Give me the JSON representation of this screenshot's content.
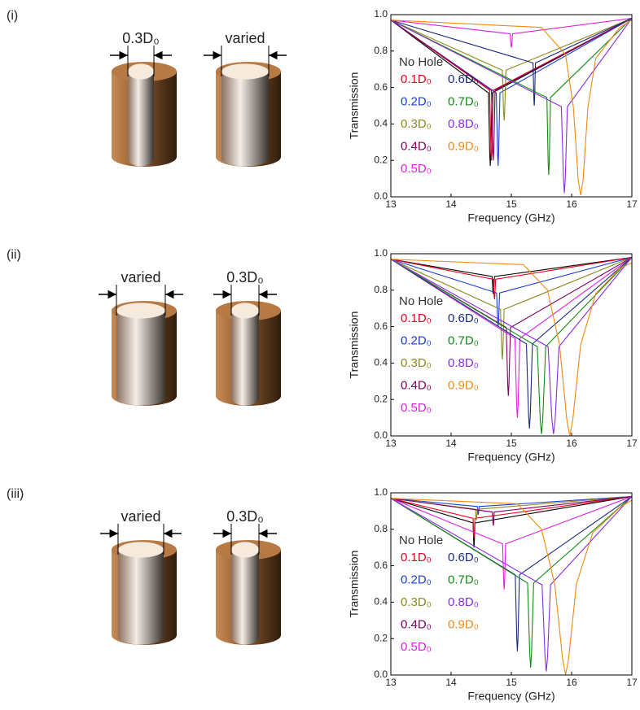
{
  "chart_data": [
    {
      "type": "line",
      "panel": "(i)",
      "left_label": "0.3D₀",
      "right_label": "varied",
      "xlabel": "Frequency (GHz)",
      "ylabel": "Transmission",
      "xlim": [
        13,
        17
      ],
      "ylim": [
        0,
        1
      ],
      "xticks": [
        13,
        14,
        15,
        16,
        17
      ],
      "yticks": [
        {
          "value": 0,
          "label": "0.0"
        },
        {
          "value": 0.2,
          "label": "0.2"
        },
        {
          "value": 0.4,
          "label": "0.4"
        },
        {
          "value": 0.6,
          "label": "0.6"
        },
        {
          "value": 0.8,
          "label": "0.8"
        },
        {
          "value": 1,
          "label": "1.0"
        }
      ],
      "series": [
        {
          "name": "No Hole",
          "color": "#000000",
          "x": [
            13,
            14.62,
            14.641,
            14.65,
            14.659,
            14.68,
            17
          ],
          "values": [
            0.97,
            0.57,
            0.24,
            0.17,
            0.24,
            0.57,
            0.98
          ]
        },
        {
          "name": "0.1D₀",
          "color": "#e8001c",
          "x": [
            13,
            14.64,
            14.661,
            14.67,
            14.679,
            14.7,
            17
          ],
          "values": [
            0.97,
            0.585,
            0.26,
            0.2,
            0.26,
            0.585,
            0.98
          ]
        },
        {
          "name": "0.2D₀",
          "color": "#1a3fd6",
          "x": [
            13,
            14.75,
            14.771,
            14.78,
            14.789,
            14.81,
            17
          ],
          "values": [
            0.97,
            0.57,
            0.24,
            0.17,
            0.24,
            0.57,
            0.98
          ]
        },
        {
          "name": "0.3D₀",
          "color": "#8a8a1e",
          "x": [
            13,
            14.85,
            14.871,
            14.88,
            14.889,
            14.91,
            17
          ],
          "values": [
            0.97,
            0.695,
            0.466,
            0.42,
            0.466,
            0.695,
            0.98
          ]
        },
        {
          "name": "0.4D₀",
          "color": "#800060",
          "x": [
            13,
            14.67,
            14.691,
            14.7,
            14.709,
            14.73,
            17
          ],
          "values": [
            0.97,
            0.585,
            0.26,
            0.2,
            0.26,
            0.585,
            0.98
          ]
        },
        {
          "name": "0.5D₀",
          "color": "#e020e0",
          "x": [
            13,
            14.98,
            14.994,
            15,
            15.006,
            15.02,
            17
          ],
          "values": [
            0.97,
            0.895,
            0.83,
            0.82,
            0.83,
            0.895,
            0.98
          ]
        },
        {
          "name": "0.6D₀",
          "color": "#1a2a80",
          "x": [
            13,
            15.36,
            15.374,
            15.38,
            15.386,
            15.4,
            17
          ],
          "values": [
            0.97,
            0.735,
            0.54,
            0.5,
            0.54,
            0.735,
            0.98
          ]
        },
        {
          "name": "0.7D₀",
          "color": "#138a13",
          "x": [
            13,
            15.59,
            15.611,
            15.62,
            15.629,
            15.65,
            17
          ],
          "values": [
            0.97,
            0.545,
            0.19,
            0.12,
            0.19,
            0.545,
            0.98
          ]
        },
        {
          "name": "0.8D₀",
          "color": "#8a2be2",
          "x": [
            13,
            15.83,
            15.865,
            15.88,
            15.895,
            15.93,
            17
          ],
          "values": [
            0.97,
            0.495,
            0.1,
            0.02,
            0.1,
            0.495,
            0.98
          ]
        },
        {
          "name": "0.9D₀",
          "color": "#f08a10",
          "x": [
            13,
            15.5,
            15.9,
            16.03,
            16.11,
            16.15,
            16.19,
            16.27,
            16.4,
            16.8,
            17
          ],
          "values": [
            0.97,
            0.93,
            0.78,
            0.49,
            0.09,
            0.01,
            0.09,
            0.49,
            0.76,
            0.93,
            0.97
          ]
        }
      ]
    },
    {
      "type": "line",
      "panel": "(ii)",
      "left_label": "varied",
      "right_label": "0.3D₀",
      "xlabel": "Frequency (GHz)",
      "ylabel": "Transmission",
      "xlim": [
        13,
        17
      ],
      "ylim": [
        0,
        1
      ],
      "xticks": [
        13,
        14,
        15,
        16,
        17
      ],
      "yticks": [
        {
          "value": 0,
          "label": "0.0"
        },
        {
          "value": 0.2,
          "label": "0.2"
        },
        {
          "value": 0.4,
          "label": "0.4"
        },
        {
          "value": 0.6,
          "label": "0.6"
        },
        {
          "value": 0.8,
          "label": "0.8"
        },
        {
          "value": 1,
          "label": "1.0"
        }
      ],
      "series": [
        {
          "name": "No Hole",
          "color": "#000000",
          "x": [
            13,
            14.68,
            14.694,
            14.7,
            14.706,
            14.72,
            17
          ],
          "values": [
            0.97,
            0.875,
            0.79,
            0.78,
            0.79,
            0.875,
            0.98
          ]
        },
        {
          "name": "0.1D₀",
          "color": "#e8001c",
          "x": [
            13,
            14.7,
            14.714,
            14.72,
            14.726,
            14.74,
            17
          ],
          "values": [
            0.97,
            0.86,
            0.77,
            0.75,
            0.77,
            0.86,
            0.98
          ]
        },
        {
          "name": "0.2D₀",
          "color": "#1a3fd6",
          "x": [
            13,
            14.755,
            14.773,
            14.78,
            14.788,
            14.805,
            17
          ],
          "values": [
            0.97,
            0.785,
            0.63,
            0.6,
            0.63,
            0.785,
            0.98
          ]
        },
        {
          "name": "0.3D₀",
          "color": "#8a8a1e",
          "x": [
            13,
            14.82,
            14.841,
            14.85,
            14.859,
            14.88,
            17
          ],
          "values": [
            0.97,
            0.695,
            0.466,
            0.42,
            0.466,
            0.695,
            0.98
          ]
        },
        {
          "name": "0.4D₀",
          "color": "#800060",
          "x": [
            13,
            14.915,
            14.94,
            14.95,
            14.96,
            14.985,
            17
          ],
          "values": [
            0.97,
            0.595,
            0.28,
            0.22,
            0.28,
            0.595,
            0.98
          ]
        },
        {
          "name": "0.5D₀",
          "color": "#e020e0",
          "x": [
            13,
            15.06,
            15.088,
            15.1,
            15.112,
            15.14,
            17
          ],
          "values": [
            0.97,
            0.535,
            0.17,
            0.1,
            0.17,
            0.535,
            0.98
          ]
        },
        {
          "name": "0.6D₀",
          "color": "#1a2a80",
          "x": [
            13,
            15.25,
            15.285,
            15.3,
            15.315,
            15.35,
            17
          ],
          "values": [
            0.97,
            0.505,
            0.12,
            0.04,
            0.12,
            0.505,
            0.98
          ]
        },
        {
          "name": "0.7D₀",
          "color": "#138a13",
          "x": [
            13,
            15.43,
            15.479,
            15.5,
            15.521,
            15.57,
            17
          ],
          "values": [
            0.97,
            0.49,
            0.09,
            0.01,
            0.09,
            0.49,
            0.98
          ]
        },
        {
          "name": "0.8D₀",
          "color": "#8a2be2",
          "x": [
            13,
            15.61,
            15.673,
            15.7,
            15.727,
            15.79,
            17
          ],
          "values": [
            0.97,
            0.49,
            0.09,
            0.01,
            0.09,
            0.49,
            0.98
          ]
        },
        {
          "name": "0.9D₀",
          "color": "#f08a10",
          "x": [
            13,
            15.2,
            15.6,
            15.8,
            15.92,
            15.97,
            16.02,
            16.15,
            16.4,
            16.8,
            17
          ],
          "values": [
            0.97,
            0.94,
            0.8,
            0.5,
            0.09,
            0,
            0.09,
            0.5,
            0.78,
            0.92,
            0.95
          ]
        }
      ]
    },
    {
      "type": "line",
      "panel": "(iii)",
      "left_label": "varied",
      "right_label": "0.3D₀",
      "xlabel": "Frequency (GHz)",
      "ylabel": "Transmission",
      "xlim": [
        13,
        17
      ],
      "ylim": [
        0,
        1
      ],
      "xticks": [
        13,
        14,
        15,
        16,
        17
      ],
      "yticks": [
        {
          "value": 0,
          "label": "0.0"
        },
        {
          "value": 0.2,
          "label": "0.2"
        },
        {
          "value": 0.4,
          "label": "0.4"
        },
        {
          "value": 0.6,
          "label": "0.6"
        },
        {
          "value": 0.8,
          "label": "0.8"
        },
        {
          "value": 1,
          "label": "1.0"
        }
      ],
      "series": [
        {
          "name": "No Hole",
          "color": "#000000",
          "x": [
            13,
            14.365,
            14.376,
            14.38,
            14.385,
            14.395,
            17
          ],
          "values": [
            0.97,
            0.835,
            0.72,
            0.7,
            0.72,
            0.835,
            0.98
          ]
        },
        {
          "name": "0.1D₀",
          "color": "#e8001c",
          "x": [
            13,
            14.365,
            14.376,
            14.38,
            14.385,
            14.395,
            17
          ],
          "values": [
            0.97,
            0.86,
            0.77,
            0.75,
            0.77,
            0.86,
            0.98
          ]
        },
        {
          "name": "0.2D₀",
          "color": "#1a3fd6",
          "x": [
            13,
            14.435,
            14.446,
            14.45,
            14.455,
            14.465,
            17
          ],
          "values": [
            0.97,
            0.925,
            0.89,
            0.88,
            0.89,
            0.925,
            0.98
          ]
        },
        {
          "name": "0.3D₀",
          "color": "#8a8a1e",
          "x": [
            13,
            14.405,
            14.416,
            14.42,
            14.425,
            14.435,
            17
          ],
          "values": [
            0.97,
            0.91,
            0.86,
            0.85,
            0.86,
            0.91,
            0.98
          ]
        },
        {
          "name": "0.4D₀",
          "color": "#800060",
          "x": [
            13,
            14.685,
            14.696,
            14.7,
            14.705,
            14.715,
            17
          ],
          "values": [
            0.97,
            0.895,
            0.83,
            0.82,
            0.83,
            0.895,
            0.98
          ]
        },
        {
          "name": "0.5D₀",
          "color": "#e020e0",
          "x": [
            13,
            14.855,
            14.873,
            14.88,
            14.888,
            14.905,
            17
          ],
          "values": [
            0.97,
            0.72,
            0.51,
            0.47,
            0.51,
            0.72,
            0.98
          ]
        },
        {
          "name": "0.6D₀",
          "color": "#1a2a80",
          "x": [
            13,
            15.065,
            15.09,
            15.1,
            15.11,
            15.135,
            17
          ],
          "values": [
            0.97,
            0.55,
            0.2,
            0.13,
            0.2,
            0.55,
            0.98
          ]
        },
        {
          "name": "0.7D₀",
          "color": "#138a13",
          "x": [
            13,
            15.27,
            15.305,
            15.32,
            15.335,
            15.37,
            17
          ],
          "values": [
            0.97,
            0.505,
            0.12,
            0.04,
            0.12,
            0.505,
            0.98
          ]
        },
        {
          "name": "0.8D₀",
          "color": "#8a2be2",
          "x": [
            13,
            15.51,
            15.559,
            15.58,
            15.601,
            15.65,
            17
          ],
          "values": [
            0.97,
            0.495,
            0.1,
            0.02,
            0.1,
            0.495,
            0.98
          ]
        },
        {
          "name": "0.9D₀",
          "color": "#f08a10",
          "x": [
            13,
            15.1,
            15.5,
            15.72,
            15.85,
            15.9,
            15.95,
            16.08,
            16.35,
            16.8,
            17
          ],
          "values": [
            0.97,
            0.94,
            0.8,
            0.5,
            0.09,
            0,
            0.09,
            0.5,
            0.78,
            0.92,
            0.96
          ]
        }
      ]
    }
  ]
}
